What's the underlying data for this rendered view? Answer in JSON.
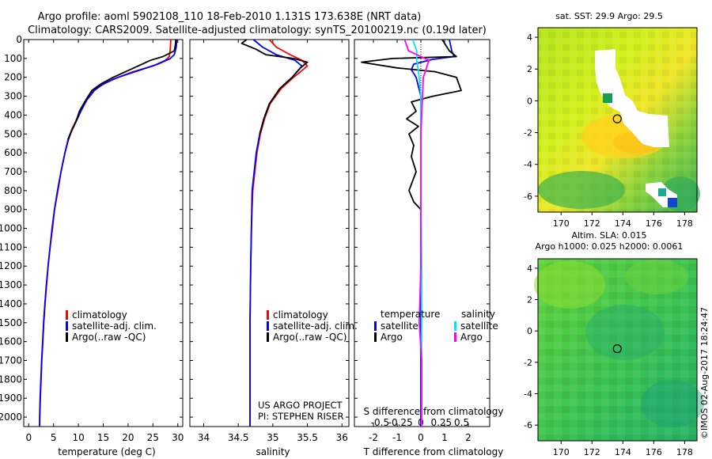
{
  "header": {
    "line1": "Argo profile: aoml 5902108_110 18-Feb-2010 1.131S 173.638E (NRT data)",
    "line2": "Climatology: CARS2009. Satellite-adjusted climatology: synTS_20100219.nc (0.19d later)"
  },
  "credit": {
    "project": "US ARGO PROJECT",
    "pi": "PI: STEPHEN RISER",
    "stamp": "©IMOS 02-Aug-2017 18:24:47"
  },
  "colors": {
    "climatology": "#ff0000",
    "satellite": "#0000ff",
    "argo": "#000000",
    "satellite_s": "#00e5ff",
    "argo_s": "#ff00ff",
    "map_white": "#ffffff"
  },
  "chart_data": [
    {
      "type": "line",
      "name": "temperature",
      "xlabel": "temperature (deg C)",
      "ylabel": "",
      "xlim": [
        -1,
        31
      ],
      "ylim": [
        2050,
        0
      ],
      "xticks": [
        "0",
        "5",
        "10",
        "15",
        "20",
        "25",
        "30"
      ],
      "xtick_values": [
        0,
        5,
        10,
        15,
        20,
        25,
        30
      ],
      "yticks": [
        "0",
        "100",
        "200",
        "300",
        "400",
        "500",
        "600",
        "700",
        "800",
        "900",
        "1000",
        "1100",
        "1200",
        "1300",
        "1400",
        "1500",
        "1600",
        "1700",
        "1800",
        "1900",
        "2000"
      ],
      "legend": [
        "climatology",
        "satellite-adj. clim.",
        "Argo(..raw -QC)"
      ],
      "legend_position": "lower-left",
      "series": [
        {
          "name": "climatology",
          "color": "#ff0000",
          "points": [
            [
              28.6,
              0
            ],
            [
              28.5,
              50
            ],
            [
              28.3,
              90
            ],
            [
              27.5,
              110
            ],
            [
              25,
              140
            ],
            [
              21,
              170
            ],
            [
              17,
              210
            ],
            [
              14.8,
              240
            ],
            [
              13,
              270
            ],
            [
              11.6,
              320
            ],
            [
              10.3,
              380
            ],
            [
              9.5,
              430
            ],
            [
              8.6,
              480
            ],
            [
              7.9,
              530
            ],
            [
              7.3,
              600
            ],
            [
              6.5,
              700
            ],
            [
              5.9,
              800
            ],
            [
              5.2,
              900
            ],
            [
              4.8,
              1000
            ],
            [
              4.3,
              1100
            ],
            [
              3.9,
              1200
            ],
            [
              3.6,
              1300
            ],
            [
              3.3,
              1400
            ],
            [
              3.05,
              1500
            ],
            [
              2.85,
              1600
            ],
            [
              2.65,
              1700
            ],
            [
              2.5,
              1800
            ],
            [
              2.35,
              1900
            ],
            [
              2.25,
              2000
            ],
            [
              2.2,
              2050
            ]
          ]
        },
        {
          "name": "satellite-adj. clim.",
          "color": "#0000ff",
          "points": [
            [
              29.8,
              0
            ],
            [
              29.7,
              40
            ],
            [
              29.3,
              80
            ],
            [
              28.5,
              100
            ],
            [
              26,
              130
            ],
            [
              22,
              165
            ],
            [
              18,
              200
            ],
            [
              15,
              235
            ],
            [
              13.2,
              270
            ],
            [
              11.7,
              320
            ],
            [
              10.5,
              380
            ],
            [
              9.6,
              430
            ],
            [
              8.7,
              480
            ],
            [
              8,
              530
            ],
            [
              7.3,
              600
            ],
            [
              6.5,
              700
            ],
            [
              5.8,
              800
            ],
            [
              5.2,
              900
            ],
            [
              4.7,
              1000
            ],
            [
              4.3,
              1100
            ],
            [
              3.9,
              1200
            ],
            [
              3.55,
              1300
            ],
            [
              3.25,
              1400
            ],
            [
              3,
              1500
            ],
            [
              2.8,
              1600
            ],
            [
              2.6,
              1700
            ],
            [
              2.45,
              1800
            ],
            [
              2.3,
              1900
            ],
            [
              2.2,
              2000
            ],
            [
              2.2,
              2050
            ]
          ]
        },
        {
          "name": "Argo(..raw -QC)",
          "color": "#000000",
          "points": [
            [
              29.6,
              0
            ],
            [
              29.5,
              30
            ],
            [
              29.3,
              60
            ],
            [
              27,
              90
            ],
            [
              24.5,
              110
            ],
            [
              22,
              140
            ],
            [
              19.5,
              170
            ],
            [
              17,
              200
            ],
            [
              14.5,
              235
            ],
            [
              12.7,
              270
            ],
            [
              11.5,
              320
            ],
            [
              10.2,
              380
            ],
            [
              9.6,
              430
            ],
            [
              8.7,
              480
            ],
            [
              7.9,
              530
            ]
          ]
        }
      ]
    },
    {
      "type": "line",
      "name": "salinity",
      "xlabel": "salinity",
      "ylabel": "",
      "xlim": [
        33.8,
        36.1
      ],
      "ylim": [
        2050,
        0
      ],
      "xticks": [
        "34",
        "34.5",
        "35",
        "35.5",
        "36"
      ],
      "xtick_values": [
        34,
        34.5,
        35,
        35.5,
        36
      ],
      "legend": [
        "climatology",
        "satellite-adj. clim.",
        "Argo(..raw -QC)"
      ],
      "legend_position": "lower-left",
      "series": [
        {
          "name": "climatology",
          "color": "#ff0000",
          "points": [
            [
              34.95,
              0
            ],
            [
              35.05,
              40
            ],
            [
              35.25,
              80
            ],
            [
              35.42,
              110
            ],
            [
              35.5,
              140
            ],
            [
              35.3,
              200
            ],
            [
              35.12,
              260
            ],
            [
              34.96,
              340
            ],
            [
              34.88,
              420
            ],
            [
              34.82,
              500
            ],
            [
              34.77,
              600
            ],
            [
              34.74,
              700
            ],
            [
              34.71,
              800
            ],
            [
              34.69,
              1000
            ],
            [
              34.68,
              1200
            ],
            [
              34.67,
              1500
            ],
            [
              34.67,
              1800
            ],
            [
              34.67,
              2050
            ]
          ]
        },
        {
          "name": "satellite-adj. clim.",
          "color": "#0000ff",
          "points": [
            [
              34.72,
              0
            ],
            [
              34.85,
              40
            ],
            [
              35.05,
              80
            ],
            [
              35.32,
              110
            ],
            [
              35.42,
              140
            ],
            [
              35.28,
              200
            ],
            [
              35.1,
              260
            ],
            [
              34.95,
              340
            ],
            [
              34.87,
              420
            ],
            [
              34.81,
              500
            ],
            [
              34.76,
              600
            ],
            [
              34.73,
              700
            ],
            [
              34.7,
              800
            ],
            [
              34.69,
              1000
            ],
            [
              34.68,
              1200
            ],
            [
              34.67,
              1500
            ],
            [
              34.67,
              1800
            ],
            [
              34.67,
              2050
            ]
          ]
        },
        {
          "name": "Argo(..raw -QC)",
          "color": "#000000",
          "points": [
            [
              34.62,
              0
            ],
            [
              34.55,
              20
            ],
            [
              34.75,
              50
            ],
            [
              34.9,
              80
            ],
            [
              35.3,
              100
            ],
            [
              35.5,
              120
            ],
            [
              35.4,
              150
            ],
            [
              35.28,
              200
            ],
            [
              35.1,
              260
            ],
            [
              34.95,
              340
            ],
            [
              34.87,
              420
            ],
            [
              34.81,
              500
            ]
          ]
        }
      ]
    },
    {
      "type": "line",
      "name": "difference",
      "xlabel": "T difference from climatology",
      "xlabel2": "S difference from climatology",
      "xlim": [
        -2.8,
        2.9
      ],
      "ylim": [
        2050,
        0
      ],
      "xticks": [
        "-2",
        "-1",
        "0",
        "1",
        "2"
      ],
      "xtick_values": [
        -2,
        -1,
        0,
        1,
        2
      ],
      "xticks2": [
        "-0.5",
        "-0.25",
        "0",
        "0.25",
        "0.5"
      ],
      "xtick2_values": [
        -0.5,
        -0.25,
        0,
        0.25,
        0.5
      ],
      "legend_titles": [
        "temperature",
        "salinity"
      ],
      "legend": [
        "satellite",
        "Argo",
        "satellite",
        "Argo"
      ],
      "legend_position": "lower",
      "series": [
        {
          "name": "satellite",
          "quantity": "temperature",
          "color": "#0000ff",
          "points": [
            [
              1.2,
              0
            ],
            [
              1.3,
              60
            ],
            [
              1.4,
              90
            ],
            [
              0.5,
              105
            ],
            [
              -0.3,
              130
            ],
            [
              -0.4,
              160
            ],
            [
              -0.2,
              200
            ],
            [
              0,
              300
            ],
            [
              0,
              500
            ],
            [
              0,
              800
            ],
            [
              0,
              1200
            ],
            [
              0,
              1600
            ],
            [
              0,
              2050
            ]
          ]
        },
        {
          "name": "Argo",
          "quantity": "temperature",
          "color": "#000000",
          "points": [
            [
              0.9,
              0
            ],
            [
              1.2,
              60
            ],
            [
              1.5,
              90
            ],
            [
              -1.2,
              100
            ],
            [
              -2.5,
              120
            ],
            [
              -1,
              150
            ],
            [
              0.6,
              170
            ],
            [
              1.5,
              200
            ],
            [
              1.7,
              270
            ],
            [
              0.5,
              300
            ],
            [
              -0.4,
              330
            ],
            [
              -0.2,
              380
            ],
            [
              -0.6,
              420
            ],
            [
              -0.1,
              460
            ],
            [
              -0.5,
              500
            ],
            [
              -0.3,
              560
            ],
            [
              -0.4,
              620
            ],
            [
              -0.2,
              700
            ],
            [
              -0.5,
              800
            ],
            [
              -0.3,
              860
            ],
            [
              0,
              900
            ]
          ]
        },
        {
          "name": "satellite",
          "quantity": "salinity",
          "color": "#00e5ff",
          "points": [
            [
              -0.1,
              0
            ],
            [
              -0.05,
              60
            ],
            [
              -0.05,
              110
            ],
            [
              -0.02,
              200
            ],
            [
              0,
              300
            ],
            [
              0,
              500
            ],
            [
              0,
              800
            ],
            [
              0.01,
              1200
            ],
            [
              0.01,
              1600
            ],
            [
              0.01,
              2050
            ]
          ]
        },
        {
          "name": "Argo",
          "quantity": "salinity",
          "color": "#ff00ff",
          "points": [
            [
              -0.2,
              0
            ],
            [
              -0.15,
              60
            ],
            [
              0.1,
              110
            ],
            [
              0.03,
              200
            ],
            [
              0.02,
              300
            ],
            [
              0,
              500
            ],
            [
              0,
              800
            ],
            [
              0,
              1200
            ],
            [
              -0.02,
              1500
            ],
            [
              0.01,
              1700
            ],
            [
              0.01,
              2050
            ]
          ]
        }
      ]
    },
    {
      "type": "heatmap",
      "name": "sst-map",
      "title": "sat. SST: 29.9  Argo: 29.5",
      "xlim": [
        168.5,
        178.8
      ],
      "ylim": [
        -7,
        4.6
      ],
      "xticks": [
        "170",
        "172",
        "174",
        "176",
        "178"
      ],
      "xtick_values": [
        170,
        172,
        174,
        176,
        178
      ],
      "yticks": [
        "4",
        "2",
        "0",
        "-2",
        "-4",
        "-6"
      ],
      "ytick_values": [
        4,
        2,
        0,
        -2,
        -4,
        -6
      ],
      "profile_location": [
        173.638,
        -1.131
      ]
    },
    {
      "type": "heatmap",
      "name": "sla-map",
      "title": "Altim. SLA: 0.015",
      "title2": "Argo h1000: 0.025  h2000: 0.0061",
      "xlim": [
        168.5,
        178.8
      ],
      "ylim": [
        -7,
        4.6
      ],
      "xticks": [
        "170",
        "172",
        "174",
        "176",
        "178"
      ],
      "xtick_values": [
        170,
        172,
        174,
        176,
        178
      ],
      "yticks": [
        "4",
        "2",
        "0",
        "-2",
        "-4",
        "-6"
      ],
      "ytick_values": [
        4,
        2,
        0,
        -2,
        -4,
        -6
      ],
      "profile_location": [
        173.638,
        -1.131
      ]
    }
  ]
}
